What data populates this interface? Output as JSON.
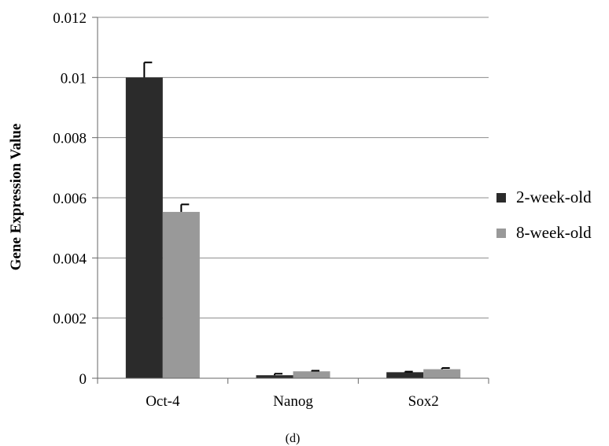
{
  "chart_data": {
    "type": "bar",
    "categories": [
      "Oct-4",
      "Nanog",
      "Sox2"
    ],
    "series": [
      {
        "name": "2-week-old",
        "values": [
          0.01,
          0.0001,
          0.0002
        ],
        "errors": [
          0.0005,
          5e-05,
          2e-05
        ],
        "color": "#2b2b2b"
      },
      {
        "name": "8-week-old",
        "values": [
          0.00553,
          0.00023,
          0.0003
        ],
        "errors": [
          0.00025,
          2e-05,
          4e-05
        ],
        "color": "#999999"
      }
    ],
    "ylabel": "Gene Expression Value",
    "ylim": [
      0,
      0.012
    ],
    "yticks": [
      "0",
      "0.002",
      "0.004",
      "0.006",
      "0.008",
      "0.01",
      "0.012"
    ],
    "grid": true,
    "legend_position": "right",
    "panel_label": "(d)"
  }
}
